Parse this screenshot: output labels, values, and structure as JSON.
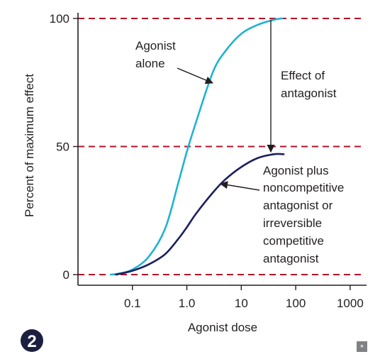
{
  "chart_data": {
    "type": "line",
    "xlabel": "Agonist dose",
    "ylabel": "Percent of maximum effect",
    "x_scale": "log",
    "xlim": [
      0.01,
      2000
    ],
    "ylim": [
      0,
      100
    ],
    "x_ticks": [
      {
        "value": 0.1,
        "label": "0.1"
      },
      {
        "value": 1,
        "label": "1.0"
      },
      {
        "value": 10,
        "label": "10"
      },
      {
        "value": 100,
        "label": "100"
      },
      {
        "value": 1000,
        "label": "1000"
      }
    ],
    "y_ticks": [
      {
        "value": 0,
        "label": "0"
      },
      {
        "value": 50,
        "label": "50"
      },
      {
        "value": 100,
        "label": "100"
      }
    ],
    "reference_lines": [
      {
        "y": 0,
        "color": "#b5122a",
        "style": "dashed"
      },
      {
        "y": 50,
        "color": "#b5122a",
        "style": "dashed"
      },
      {
        "y": 100,
        "color": "#b5122a",
        "style": "dashed"
      }
    ],
    "series": [
      {
        "color": "#1fb3d2",
        "x": [
          0.04,
          0.06,
          0.1,
          0.2,
          0.4,
          0.7,
          1.0,
          1.5,
          3,
          5,
          10,
          20,
          40,
          56
        ],
        "y": [
          0,
          0.5,
          2,
          7,
          18,
          36,
          48,
          60,
          79,
          87,
          94,
          97.5,
          99.5,
          100
        ]
      },
      {
        "color": "#1c1f5e",
        "x": [
          0.05,
          0.1,
          0.2,
          0.4,
          0.7,
          1.0,
          1.5,
          3,
          5,
          10,
          20,
          40,
          60
        ],
        "y": [
          0,
          1.5,
          4,
          8,
          14,
          18.5,
          24,
          32,
          37,
          42,
          45.5,
          47,
          47
        ]
      }
    ],
    "annotations": [
      {
        "text": [
          "Agonist",
          "alone"
        ]
      },
      {
        "text": [
          "Effect of",
          "antagonist"
        ]
      },
      {
        "text": [
          "Agonist plus",
          "noncompetitive",
          "antagonist or",
          "irreversible",
          "competitive",
          "antagonist"
        ]
      }
    ],
    "grid": false,
    "legend": "none"
  },
  "badge": {
    "label": "2",
    "color": "#1c1f3f"
  },
  "corner_mark": {
    "label": "*",
    "color": "#7f8184"
  }
}
